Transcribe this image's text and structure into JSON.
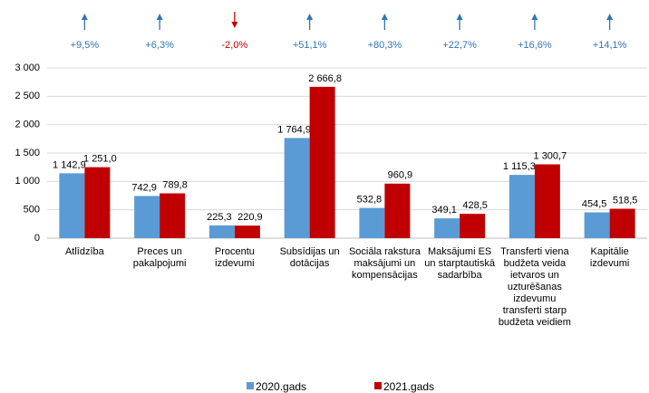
{
  "chart_data": {
    "type": "bar",
    "categories": [
      "Atlīdzība",
      "Preces un pakalpojumi",
      "Procentu izdevumi",
      "Subsīdijas un dotācijas",
      "Sociāla rakstura maksājumi un kompensācijas",
      "Maksājumi ES un starptautiskā sadarbība",
      "Transferti viena budžeta veida ietvaros un uzturēšanas izdevumu transferti starp budžeta veidiem",
      "Kapitālie izdevumi"
    ],
    "series": [
      {
        "name": "2020.gads",
        "color": "#5b9bd5",
        "values": [
          1142.9,
          742.9,
          225.3,
          1764.9,
          532.8,
          349.1,
          1115.3,
          454.5
        ],
        "value_labels": [
          "1 142,9",
          "742,9",
          "225,3",
          "1 764,9",
          "532,8",
          "349,1",
          "1 115,3",
          "454,5"
        ]
      },
      {
        "name": "2021.gads",
        "color": "#c00000",
        "values": [
          1251.0,
          789.8,
          220.9,
          2666.8,
          960.9,
          428.5,
          1300.7,
          518.5
        ],
        "value_labels": [
          "1 251,0",
          "789,8",
          "220,9",
          "2 666,8",
          "960,9",
          "428,5",
          "1 300,7",
          "518,5"
        ]
      }
    ],
    "annotations": [
      {
        "text": "+9,5%",
        "direction": "up",
        "color": "#2e75b6"
      },
      {
        "text": "+6,3%",
        "direction": "up",
        "color": "#2e75b6"
      },
      {
        "text": "-2,0%",
        "direction": "down",
        "color": "#c00000"
      },
      {
        "text": "+51,1%",
        "direction": "up",
        "color": "#2e75b6"
      },
      {
        "text": "+80,3%",
        "direction": "up",
        "color": "#2e75b6"
      },
      {
        "text": "+22,7%",
        "direction": "up",
        "color": "#2e75b6"
      },
      {
        "text": "+16,6%",
        "direction": "up",
        "color": "#2e75b6"
      },
      {
        "text": "+14,1%",
        "direction": "up",
        "color": "#2e75b6"
      }
    ],
    "ylim": [
      0,
      3000
    ],
    "yticks": [
      0,
      500,
      {
        "value": 1000,
        "label": "1 000"
      },
      {
        "value": 1500,
        "label": "1 500"
      },
      {
        "value": 2000,
        "label": "2 000"
      },
      {
        "value": 2500,
        "label": "2 500"
      },
      {
        "value": 3000,
        "label": "3 000"
      }
    ],
    "grid": true,
    "legend": "bottom"
  }
}
